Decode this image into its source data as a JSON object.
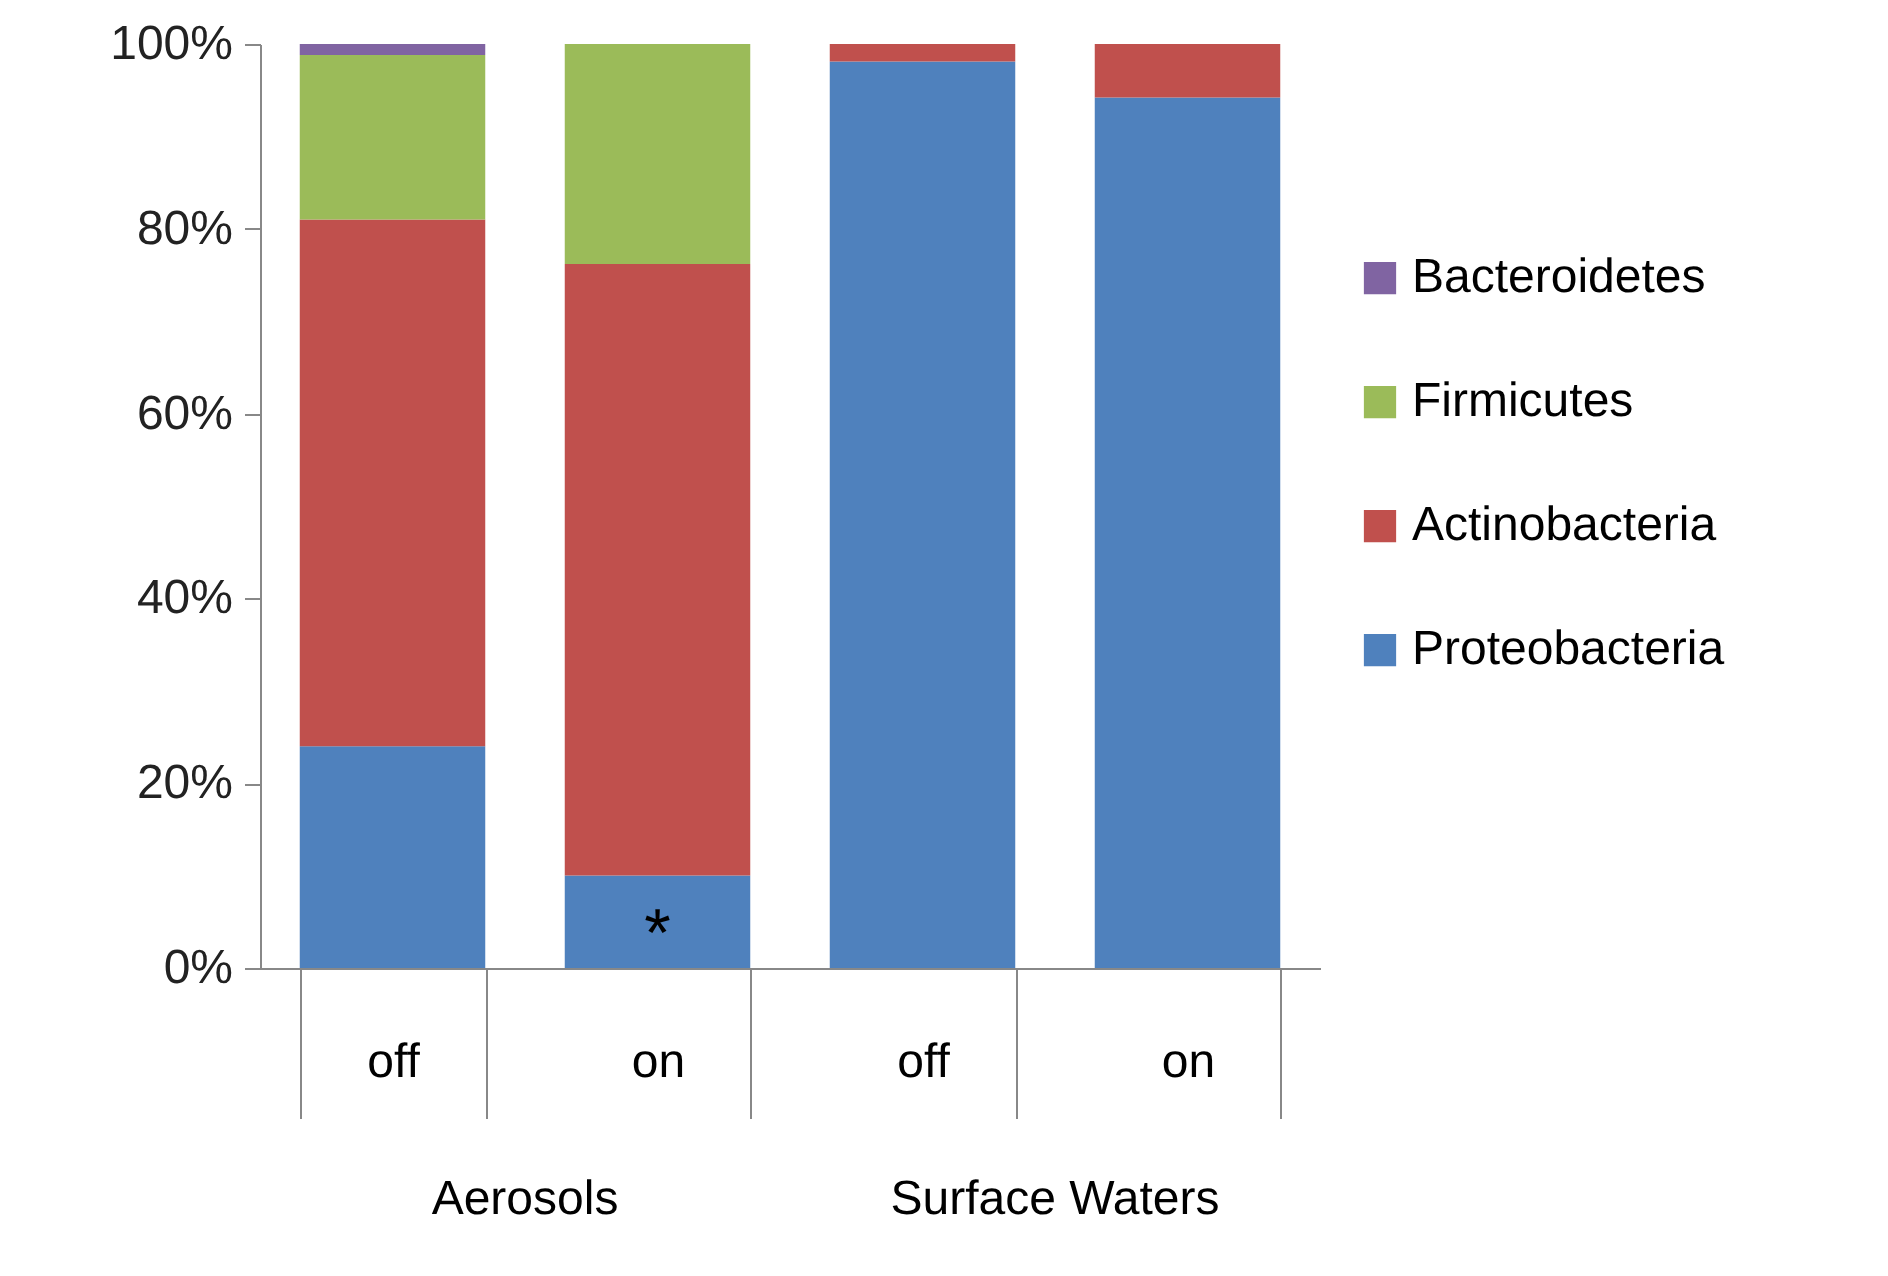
{
  "chart_data": {
    "type": "bar",
    "stacked": true,
    "categories": [
      "off",
      "on",
      "off",
      "on"
    ],
    "series": [
      {
        "name": "Proteobacteria",
        "color": "#4f81bd",
        "values": [
          24,
          10,
          98.1,
          94.2
        ]
      },
      {
        "name": "Actinobacteria",
        "color": "#c0504d",
        "values": [
          57,
          66.2,
          1.9,
          5.8
        ]
      },
      {
        "name": "Firmicutes",
        "color": "#9bbb59",
        "values": [
          17.8,
          23.8,
          null,
          null
        ]
      },
      {
        "name": "Bacteroidetes",
        "color": "#8064a2",
        "values": [
          1.2,
          null,
          null,
          null
        ]
      }
    ],
    "ylim": [
      0,
      100
    ],
    "yticks": [
      {
        "value": 0,
        "label": "0%"
      },
      {
        "value": 20,
        "label": "20%"
      },
      {
        "value": 40,
        "label": "40%"
      },
      {
        "value": 60,
        "label": "60%"
      },
      {
        "value": 80,
        "label": "80%"
      },
      {
        "value": 100,
        "label": "100%"
      }
    ],
    "annotations": [
      "*",
      "Aerosols",
      "Surface Waters"
    ],
    "grid": false,
    "legend": "right"
  }
}
